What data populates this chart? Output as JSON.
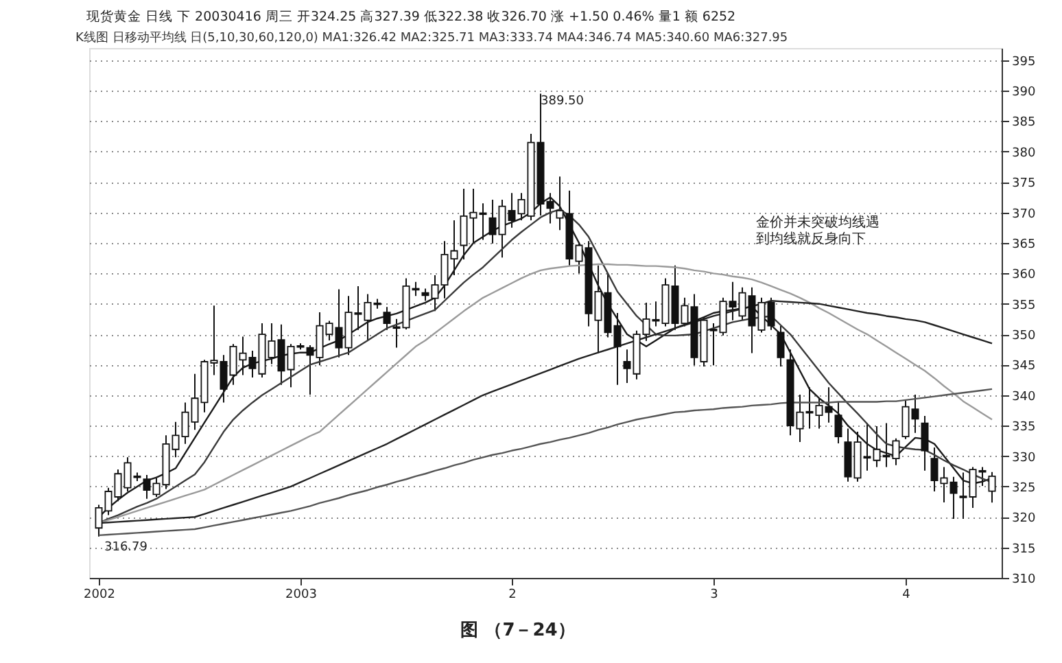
{
  "chart_data": {
    "type": "candlestick",
    "title": "现货黄金 日线 下 20030416 周三 开324.25 高327.39 低322.38 收326.70 涨 +1.50 0.46% 量1 额 6252",
    "subtitle": "K线图 日移动平均线 日(5,10,30,60,120,0) MA1:326.42 MA2:325.71 MA3:333.74 MA4:346.74 MA5:340.60 MA6:327.95",
    "categories": [
      "2002",
      null,
      null,
      null,
      null,
      null,
      null,
      null,
      null,
      null,
      null,
      null,
      null,
      null,
      null,
      null,
      null,
      null,
      null,
      null,
      null,
      "2003",
      null,
      null,
      null,
      null,
      null,
      null,
      null,
      null,
      null,
      null,
      null,
      null,
      null,
      null,
      null,
      null,
      null,
      null,
      null,
      null,
      null,
      "2",
      null,
      null,
      null,
      null,
      null,
      null,
      null,
      null,
      null,
      null,
      null,
      null,
      null,
      null,
      null,
      null,
      null,
      null,
      null,
      null,
      "3",
      null,
      null,
      null,
      null,
      null,
      null,
      null,
      null,
      null,
      null,
      null,
      null,
      null,
      null,
      null,
      null,
      null,
      null,
      null,
      "4",
      null,
      null,
      null,
      null,
      null,
      null,
      null,
      null,
      null
    ],
    "ohlc": [
      [
        318.2,
        322,
        316.79,
        321.5
      ],
      [
        321,
        324.8,
        320.3,
        324.2
      ],
      [
        323.3,
        327.8,
        322.6,
        327.1
      ],
      [
        324.8,
        329.8,
        324.2,
        328.9
      ],
      [
        326.5,
        327.3,
        325.9,
        326.7
      ],
      [
        326.2,
        326.9,
        323,
        324.4
      ],
      [
        323.7,
        326.4,
        323.3,
        325.5
      ],
      [
        325.3,
        333.4,
        324.6,
        332
      ],
      [
        331.1,
        335.6,
        329.8,
        333.4
      ],
      [
        333.2,
        338.8,
        332,
        337.2
      ],
      [
        335.6,
        343.5,
        334.3,
        339.5
      ],
      [
        338.8,
        345.8,
        337.2,
        345.5
      ],
      [
        345.3,
        354.7,
        343.3,
        345.7
      ],
      [
        345.5,
        346.6,
        338.8,
        341
      ],
      [
        343.3,
        348.4,
        341.7,
        348
      ],
      [
        345.8,
        349.6,
        343.3,
        346.9
      ],
      [
        346.2,
        347.3,
        342.9,
        344.4
      ],
      [
        343.5,
        351.8,
        342.9,
        350
      ],
      [
        346.2,
        351.8,
        345.1,
        348.9
      ],
      [
        349.1,
        351.6,
        341.7,
        344
      ],
      [
        344.2,
        348.4,
        341.3,
        348
      ],
      [
        347.9,
        348.5,
        347.5,
        348.1
      ],
      [
        347.8,
        348.2,
        340.1,
        346.6
      ],
      [
        346.2,
        353.6,
        344.9,
        351.4
      ],
      [
        350,
        352.2,
        349,
        351.8
      ],
      [
        351.1,
        357.4,
        346.2,
        347.8
      ],
      [
        347.8,
        356.3,
        346.6,
        353.6
      ],
      [
        353.3,
        357.9,
        350.7,
        353.5
      ],
      [
        352.3,
        356.6,
        349,
        355.2
      ],
      [
        355.1,
        355.8,
        354.2,
        354.9
      ],
      [
        353.6,
        354.5,
        350.7,
        351.8
      ],
      [
        351.2,
        352.5,
        347.8,
        351
      ],
      [
        351.1,
        359.2,
        350.8,
        357.9
      ],
      [
        357.3,
        358.6,
        356.3,
        357.5
      ],
      [
        356.8,
        357.5,
        355.5,
        356.4
      ],
      [
        355.9,
        359.7,
        353.8,
        358.1
      ],
      [
        358.1,
        365.3,
        355.9,
        363.1
      ],
      [
        362.4,
        368.7,
        359.7,
        363.7
      ],
      [
        364.6,
        373.9,
        362.3,
        369.4
      ],
      [
        369.1,
        373.9,
        365.1,
        370
      ],
      [
        369.7,
        371.5,
        365.5,
        369.9
      ],
      [
        369.1,
        372.1,
        364.9,
        366.4
      ],
      [
        366.4,
        372.1,
        362.6,
        371
      ],
      [
        370.3,
        373.2,
        367.5,
        368.7
      ],
      [
        369.8,
        373.2,
        368.7,
        372.1
      ],
      [
        369.4,
        382.9,
        368.7,
        381.5
      ],
      [
        381.5,
        389.5,
        369.5,
        371.4
      ],
      [
        371.8,
        373.2,
        368.2,
        370.7
      ],
      [
        369.1,
        375.9,
        367.1,
        370.3
      ],
      [
        369.8,
        373.6,
        361.3,
        362.4
      ],
      [
        362,
        365.1,
        360,
        364.6
      ],
      [
        364.2,
        365.3,
        351.3,
        353.4
      ],
      [
        352.3,
        361.3,
        346.9,
        357
      ],
      [
        356.8,
        360,
        349.5,
        350.3
      ],
      [
        351.4,
        353.5,
        341.7,
        348
      ],
      [
        345.5,
        347.5,
        342,
        344.4
      ],
      [
        343.5,
        350.6,
        342.6,
        350
      ],
      [
        350,
        355.2,
        348.9,
        352.5
      ],
      [
        352.2,
        355.4,
        351.3,
        352.4
      ],
      [
        351.8,
        359.2,
        351.3,
        358.1
      ],
      [
        357.9,
        361.3,
        350.7,
        351.8
      ],
      [
        351.8,
        356,
        351.3,
        354.7
      ],
      [
        354.5,
        356.6,
        344.9,
        346.2
      ],
      [
        345.5,
        352.8,
        344.7,
        352.3
      ],
      [
        350.6,
        351.8,
        344.9,
        350.8
      ],
      [
        350.3,
        356,
        349.8,
        355.4
      ],
      [
        355.4,
        358.6,
        352.3,
        354.5
      ],
      [
        353,
        357.7,
        352.3,
        356.8
      ],
      [
        356.3,
        357.7,
        346.9,
        351.4
      ],
      [
        350.7,
        356,
        350.3,
        355.2
      ],
      [
        355.2,
        356,
        350.7,
        351.4
      ],
      [
        350.3,
        351.4,
        344.7,
        346.2
      ],
      [
        345.8,
        347.5,
        333.4,
        335
      ],
      [
        334.5,
        340.1,
        332.3,
        337.2
      ],
      [
        337.1,
        341.3,
        334.5,
        337.3
      ],
      [
        336.7,
        339.4,
        334.5,
        338.3
      ],
      [
        338.1,
        341.3,
        335.5,
        337.2
      ],
      [
        336.7,
        338.9,
        332.1,
        333.2
      ],
      [
        332.3,
        334.5,
        325.8,
        326.6
      ],
      [
        326.4,
        334,
        325.8,
        332.3
      ],
      [
        329.7,
        335.4,
        327.6,
        329.9
      ],
      [
        329.3,
        334.9,
        328.2,
        331.1
      ],
      [
        329.9,
        335.4,
        328.2,
        330.1
      ],
      [
        329.6,
        332.9,
        328.5,
        332.5
      ],
      [
        333.2,
        339.2,
        332.8,
        338.1
      ],
      [
        337.7,
        340.1,
        333.8,
        336.1
      ],
      [
        335.4,
        336.6,
        327.6,
        330.9
      ],
      [
        329.6,
        331.4,
        324.2,
        326
      ],
      [
        325.5,
        328.2,
        322.4,
        326.4
      ],
      [
        325.7,
        326.6,
        319.7,
        323.9
      ],
      [
        323.2,
        327.3,
        319.7,
        323.4
      ],
      [
        323.3,
        328.2,
        321.5,
        327.8
      ],
      [
        327.4,
        328.2,
        325.1,
        327.6
      ],
      [
        324.25,
        327.39,
        322.38,
        326.7
      ]
    ],
    "series": [
      {
        "type": "line",
        "color": "#1a1a1a",
        "values": [
          320,
          321.5,
          322.8,
          324,
          325,
          326,
          326.5,
          327.2,
          328,
          330.5,
          333,
          335.5,
          338,
          340.5,
          343,
          344.5,
          345.2,
          345.6,
          346,
          346.5,
          346.8,
          347,
          347,
          347.7,
          348.4,
          349,
          350,
          351,
          352,
          352.6,
          353,
          353.4,
          354,
          354.6,
          355.2,
          356,
          358,
          360.5,
          363,
          365,
          366,
          367,
          367.8,
          368.4,
          369,
          370,
          371.5,
          372.5,
          371,
          368,
          365,
          361.5,
          358,
          355,
          352.5,
          350,
          349,
          348,
          349,
          350,
          351,
          351.6,
          352.2,
          352.8,
          353.5,
          353.8,
          354,
          354.3,
          354.5,
          353,
          351.5,
          350,
          347,
          344,
          341,
          339.5,
          338.3,
          337,
          335,
          333.5,
          332,
          331,
          330.5,
          330,
          331.5,
          333,
          332.8,
          332,
          330,
          328,
          326,
          325.5,
          325.8,
          326.4
        ]
      },
      {
        "type": "line",
        "color": "#3a3a3a",
        "values": [
          319,
          319.7,
          320.3,
          321,
          321.7,
          322.3,
          323,
          324,
          325,
          326,
          327,
          329,
          331.5,
          334,
          336,
          337.5,
          338.8,
          340,
          341,
          342,
          343,
          344,
          345,
          345.5,
          346,
          346.5,
          347,
          348,
          349,
          350,
          351,
          351.6,
          352.2,
          352.8,
          353.4,
          354,
          355.5,
          357,
          358.5,
          359.8,
          361,
          362.5,
          364,
          365.5,
          366.8,
          368,
          369.2,
          370,
          370.5,
          369.5,
          368,
          366,
          363,
          360,
          357,
          355,
          353,
          351.5,
          350,
          349.8,
          349.8,
          349.9,
          350,
          350.5,
          351,
          351.5,
          352,
          352.3,
          352.6,
          352.8,
          353,
          351.5,
          350,
          348,
          346,
          344,
          342,
          340.3,
          338.6,
          337,
          335.3,
          333.6,
          332,
          331.6,
          331.3,
          331.1,
          331,
          330.2,
          329.3,
          328.5,
          327.8,
          327,
          326.3,
          325.7
        ]
      },
      {
        "type": "line",
        "color": "#9a9a9a",
        "values": [
          319,
          319.5,
          320,
          320.5,
          321,
          321.5,
          322,
          322.5,
          323,
          323.5,
          324,
          324.5,
          325.3,
          326.1,
          326.9,
          327.7,
          328.5,
          329.3,
          330.1,
          330.9,
          331.7,
          332.5,
          333.3,
          334,
          335.4,
          336.8,
          338.2,
          339.6,
          341,
          342.4,
          343.8,
          345.2,
          346.6,
          348,
          349,
          350.2,
          351.4,
          352.6,
          353.8,
          354.9,
          356,
          356.8,
          357.6,
          358.4,
          359.2,
          359.9,
          360.5,
          360.8,
          361,
          361.2,
          361.3,
          361.4,
          361.5,
          361.5,
          361.4,
          361.4,
          361.3,
          361.2,
          361.2,
          361.1,
          361,
          360.8,
          360.5,
          360.3,
          360,
          359.8,
          359.5,
          359.3,
          359,
          358.5,
          357.9,
          357.3,
          356.7,
          356,
          355.2,
          354.3,
          353.5,
          352.6,
          351.7,
          350.8,
          350,
          349,
          348,
          347,
          346,
          345,
          344,
          342.8,
          341.5,
          340.3,
          339,
          338,
          337,
          336
        ]
      },
      {
        "type": "line",
        "color": "#222222",
        "values": [
          319,
          319.1,
          319.2,
          319.3,
          319.4,
          319.5,
          319.6,
          319.7,
          319.8,
          319.9,
          320,
          320.5,
          321,
          321.5,
          322,
          322.5,
          323,
          323.5,
          324,
          324.5,
          325,
          325.7,
          326.4,
          327.1,
          327.8,
          328.5,
          329.2,
          329.9,
          330.6,
          331.3,
          332,
          332.8,
          333.6,
          334.4,
          335.2,
          336,
          336.8,
          337.6,
          338.4,
          339.2,
          340,
          340.6,
          341.2,
          341.8,
          342.4,
          343,
          343.6,
          344.2,
          344.8,
          345.4,
          346,
          346.5,
          347,
          347.5,
          348,
          348.5,
          349,
          349.5,
          350,
          350.5,
          351,
          351.5,
          352,
          352.5,
          353,
          353.4,
          353.8,
          354.2,
          354.6,
          355,
          355.5,
          355.4,
          355.3,
          355.2,
          355.1,
          355,
          354.7,
          354.4,
          354.1,
          353.8,
          353.5,
          353.3,
          353,
          352.8,
          352.5,
          352.3,
          352,
          351.5,
          351,
          350.5,
          350,
          349.5,
          349,
          348.5
        ]
      },
      {
        "type": "line",
        "color": "#555555",
        "values": [
          317,
          317.1,
          317.2,
          317.3,
          317.4,
          317.5,
          317.6,
          317.7,
          317.8,
          317.9,
          318,
          318.3,
          318.6,
          318.9,
          319.2,
          319.5,
          319.8,
          320.1,
          320.4,
          320.7,
          321,
          321.4,
          321.8,
          322.3,
          322.7,
          323.1,
          323.6,
          324,
          324.4,
          324.9,
          325.3,
          325.8,
          326.2,
          326.7,
          327.1,
          327.6,
          328,
          328.5,
          328.9,
          329.4,
          329.8,
          330.2,
          330.5,
          330.9,
          331.2,
          331.6,
          332,
          332.3,
          332.7,
          333,
          333.4,
          333.8,
          334.3,
          334.7,
          335.2,
          335.6,
          336,
          336.3,
          336.6,
          336.9,
          337.2,
          337.3,
          337.5,
          337.6,
          337.7,
          337.9,
          338,
          338.1,
          338.3,
          338.4,
          338.5,
          338.7,
          338.8,
          338.8,
          338.8,
          338.8,
          338.8,
          338.9,
          338.9,
          338.9,
          338.9,
          338.9,
          339,
          339,
          339.2,
          339.4,
          339.6,
          339.8,
          340,
          340.2,
          340.4,
          340.6,
          340.8,
          341
        ]
      }
    ],
    "ylim": [
      310,
      397
    ],
    "yticks": [
      310,
      315,
      320,
      325,
      330,
      335,
      340,
      345,
      350,
      355,
      360,
      365,
      370,
      375,
      380,
      385,
      390,
      395
    ],
    "grid": "y",
    "legend": false,
    "annotations": [
      "389.50",
      {
        "text": "316.79",
        "x": "2002",
        "y": 316.79
      },
      "金价并未突破均线遇到均线就反身向下",
      "图 （7－24）"
    ]
  }
}
